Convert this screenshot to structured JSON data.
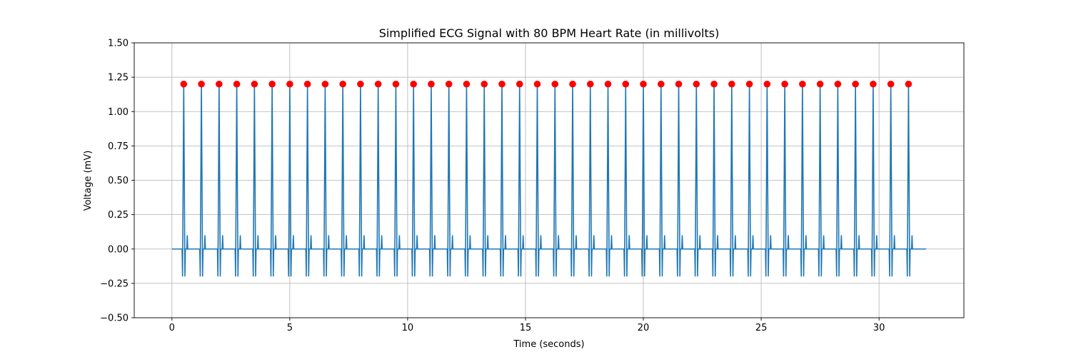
{
  "chart_data": {
    "type": "line",
    "title": "Simplified ECG Signal with 80 BPM Heart Rate (in millivolts)",
    "xlabel": "Time (seconds)",
    "ylabel": "Voltage (mV)",
    "xlim": [
      -1.6,
      33.6
    ],
    "ylim": [
      -0.5,
      1.5
    ],
    "xticks": [
      0,
      5,
      10,
      15,
      20,
      25,
      30
    ],
    "yticks": [
      -0.5,
      -0.25,
      0.0,
      0.25,
      0.5,
      0.75,
      1.0,
      1.25,
      1.5
    ],
    "ytick_labels": [
      "−0.50",
      "−0.25",
      "0.00",
      "0.25",
      "0.50",
      "0.75",
      "1.00",
      "1.25",
      "1.50"
    ],
    "grid": true,
    "signal_range": [
      0,
      32
    ],
    "beat_period": 0.75,
    "first_r_peak": 0.5,
    "beat_count": 42,
    "beat_shape": {
      "q_offset": -0.05,
      "q_value": -0.2,
      "r_offset": 0.0,
      "r_value": 1.2,
      "s_offset": 0.05,
      "s_value": -0.2,
      "t_offset": 0.15,
      "t_value": 0.1,
      "baseline": 0.0
    },
    "r_peak_value": 1.2,
    "series": [
      {
        "name": "",
        "color": "#1f77b4",
        "style": "line"
      },
      {
        "name": "",
        "color": "#ff0000",
        "style": "markers"
      }
    ]
  }
}
